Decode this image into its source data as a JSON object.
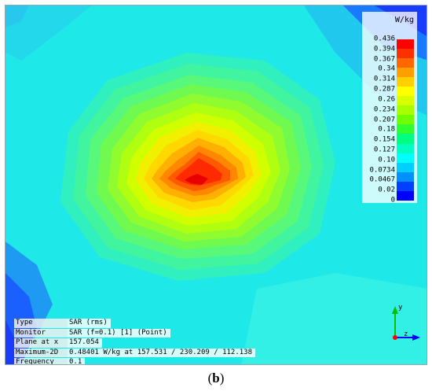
{
  "legend": {
    "unit": "W/kg",
    "ticks": [
      "0.436",
      "0.394",
      "0.367",
      "0.34",
      "0.314",
      "0.287",
      "0.26",
      "0.234",
      "0.207",
      "0.18",
      "0.154",
      "0.127",
      "0.10",
      "0.0734",
      "0.0467",
      "0.02",
      "0"
    ],
    "colors": [
      "#ff0000",
      "#ff3000",
      "#ff6800",
      "#ffa000",
      "#ffd000",
      "#ffff00",
      "#d8ff00",
      "#a8ff00",
      "#70ff00",
      "#30ff30",
      "#00ff80",
      "#00ffc0",
      "#00ffff",
      "#00d0ff",
      "#0090ff",
      "#0040ff",
      "#0000ff"
    ]
  },
  "info": {
    "rows": [
      {
        "key": "Type",
        "value": "SAR (rms)"
      },
      {
        "key": "Monitor",
        "value": "SAR (f=0.1) [1] (Point)"
      },
      {
        "key": "Plane at x",
        "value": "157.054"
      },
      {
        "key": "Maximum-2D",
        "value": "0.48401 W/kg at 157.531 / 230.209 / 112.138"
      },
      {
        "key": "Frequency",
        "value": "0.1"
      }
    ]
  },
  "axes": {
    "y_label": "y",
    "z_label": "z",
    "y_color": "#00c000",
    "z_color": "#0000ff"
  },
  "caption": {
    "open": "(",
    "label": "b",
    "close": ")"
  },
  "field": {
    "background": "#1ee8e8",
    "peak_color": "#e80000",
    "corner_color": "#1a3cff"
  }
}
